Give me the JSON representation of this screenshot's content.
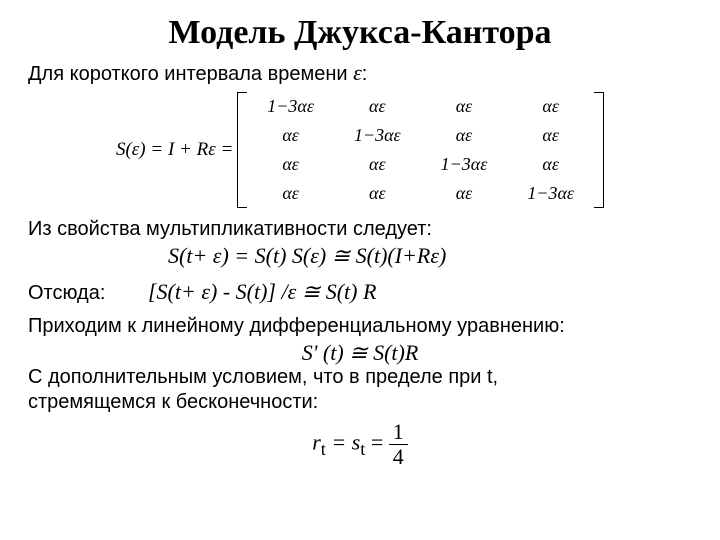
{
  "title": "Модель Джукса-Кантора",
  "line_interval_prefix": "Для короткого интервала времени ",
  "eps": "ε",
  "colon": ":",
  "lhs_eq": "S(ε) = I + Rε =",
  "matrix": {
    "diag": "1−3αε",
    "off": "αε"
  },
  "line_mult": "Из свойства мультипликативности следует:",
  "formula_mult": "S(t+ ε) = S(t) S(ε) ≅ S(t)(I+Rε)",
  "label_hence": "Отсюда:",
  "formula_hence": "[S(t+ ε) - S(t)] /ε ≅ S(t) R",
  "line_ode": "Приходим к линейному дифференциальному уравнению:",
  "formula_ode": "S' (t) ≅ S(t)R",
  "line_cond1": "С дополнительным условием, что в пределе при t,",
  "line_cond2": "стремящемся к бесконечности:",
  "limit": {
    "lhs": "r",
    "sub": "t",
    "eq": " = s",
    "rhs_num": "1",
    "rhs_den": "4"
  },
  "style": {
    "bg": "#ffffff",
    "text": "#000000",
    "title_fontsize": 34,
    "body_fontsize": 20,
    "formula_fontsize": 22,
    "matrix_fontsize": 18
  }
}
